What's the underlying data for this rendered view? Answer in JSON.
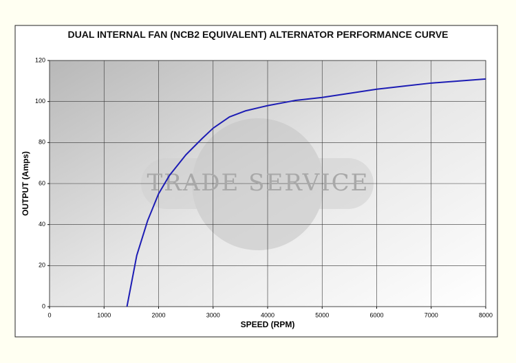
{
  "chart_data": {
    "type": "line",
    "title": "DUAL INTERNAL FAN (NCB2 EQUIVALENT) ALTERNATOR PERFORMANCE CURVE",
    "xlabel": "SPEED (RPM)",
    "ylabel": "OUTPUT (Amps)",
    "watermark": "TRADE SERVICE",
    "x": [
      1420,
      1600,
      1800,
      2000,
      2200,
      2500,
      2800,
      3000,
      3300,
      3600,
      4000,
      4500,
      5000,
      5500,
      6000,
      6500,
      7000,
      7500,
      8000
    ],
    "series": [
      {
        "name": "Output",
        "color": "#1c1cb4",
        "values": [
          0,
          25,
          42,
          55,
          64,
          74,
          82,
          87,
          92.5,
          95.5,
          98,
          100.5,
          102,
          104,
          106,
          107.5,
          109,
          110,
          111
        ]
      }
    ],
    "xlim": [
      0,
      8000
    ],
    "xticks": [
      0,
      1000,
      2000,
      3000,
      4000,
      5000,
      6000,
      7000,
      8000
    ],
    "ylim": [
      0,
      120
    ],
    "yticks": [
      0,
      20,
      40,
      60,
      80,
      100,
      120
    ],
    "grid": true
  }
}
